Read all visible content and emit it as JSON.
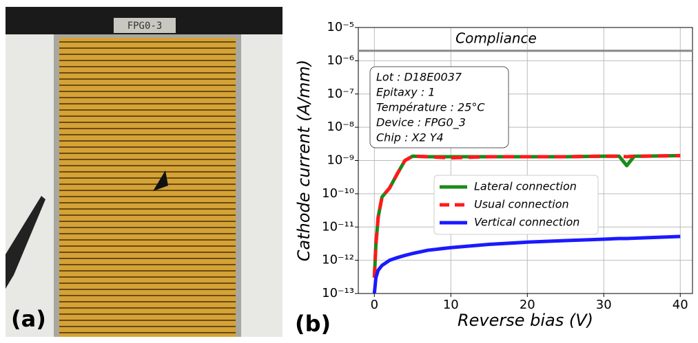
{
  "panel_a": {
    "label": "(a)",
    "chip_label": "FPG0-3"
  },
  "chart_data": {
    "type": "line",
    "panel_label": "(b)",
    "xlabel": "Reverse bias (V)",
    "ylabel": "Cathode current (A/mm)",
    "x": [
      0,
      0.2,
      0.5,
      1,
      2,
      3,
      4,
      5,
      7,
      10,
      15,
      20,
      25,
      30,
      32,
      33,
      34,
      35,
      40
    ],
    "series": [
      {
        "name": "Lateral connection",
        "color": "#1a8a1a",
        "dash": "solid",
        "values": [
          3e-13,
          3e-12,
          2e-11,
          8e-11,
          1.5e-10,
          4e-10,
          1e-09,
          1.35e-09,
          1.3e-09,
          1.3e-09,
          1.3e-09,
          1.3e-09,
          1.3e-09,
          1.35e-09,
          1.35e-09,
          7e-10,
          1.35e-09,
          1.35e-09,
          1.4e-09
        ]
      },
      {
        "name": "Usual connection",
        "color": "#ff1a1a",
        "dash": "dashed",
        "values": [
          3e-13,
          3e-12,
          2e-11,
          8e-11,
          1.5e-10,
          4e-10,
          1e-09,
          1.35e-09,
          1.3e-09,
          1.2e-09,
          1.3e-09,
          1.3e-09,
          1.3e-09,
          1.35e-09,
          1.35e-09,
          1.3e-09,
          1.35e-09,
          1.35e-09,
          1.4e-09
        ]
      },
      {
        "name": "Vertical connection",
        "color": "#1a1aff",
        "dash": "solid",
        "values": [
          1e-13,
          3e-13,
          5e-13,
          7e-13,
          1e-12,
          1.2e-12,
          1.4e-12,
          1.6e-12,
          2e-12,
          2.4e-12,
          3e-12,
          3.5e-12,
          3.9e-12,
          4.3e-12,
          4.5e-12,
          4.5e-12,
          4.6e-12,
          4.7e-12,
          5.2e-12
        ]
      }
    ],
    "xlim": [
      -2.1,
      41.6
    ],
    "xticks": [
      0,
      10,
      20,
      30,
      40
    ],
    "ylim": [
      1e-13,
      1e-05
    ],
    "log_y": true,
    "yticks": [
      {
        "value": 1e-13,
        "label": "10⁻¹³"
      },
      {
        "value": 1e-12,
        "label": "10⁻¹²"
      },
      {
        "value": 1e-11,
        "label": "10⁻¹¹"
      },
      {
        "value": 1e-10,
        "label": "10⁻¹⁰"
      },
      {
        "value": 1e-09,
        "label": "10⁻⁹"
      },
      {
        "value": 1e-08,
        "label": "10⁻⁸"
      },
      {
        "value": 1e-07,
        "label": "10⁻⁷"
      },
      {
        "value": 1e-06,
        "label": "10⁻⁶"
      },
      {
        "value": 1e-05,
        "label": "10⁻⁵"
      }
    ],
    "grid": true,
    "legend": "center right",
    "compliance": {
      "label": "Compliance",
      "value": 2e-06,
      "color": "#888888"
    },
    "info_box": [
      "Lot : D18E0037",
      "Epitaxy : 1",
      "Température : 25°C",
      "Device : FPG0_3",
      "Chip : X2 Y4"
    ]
  }
}
